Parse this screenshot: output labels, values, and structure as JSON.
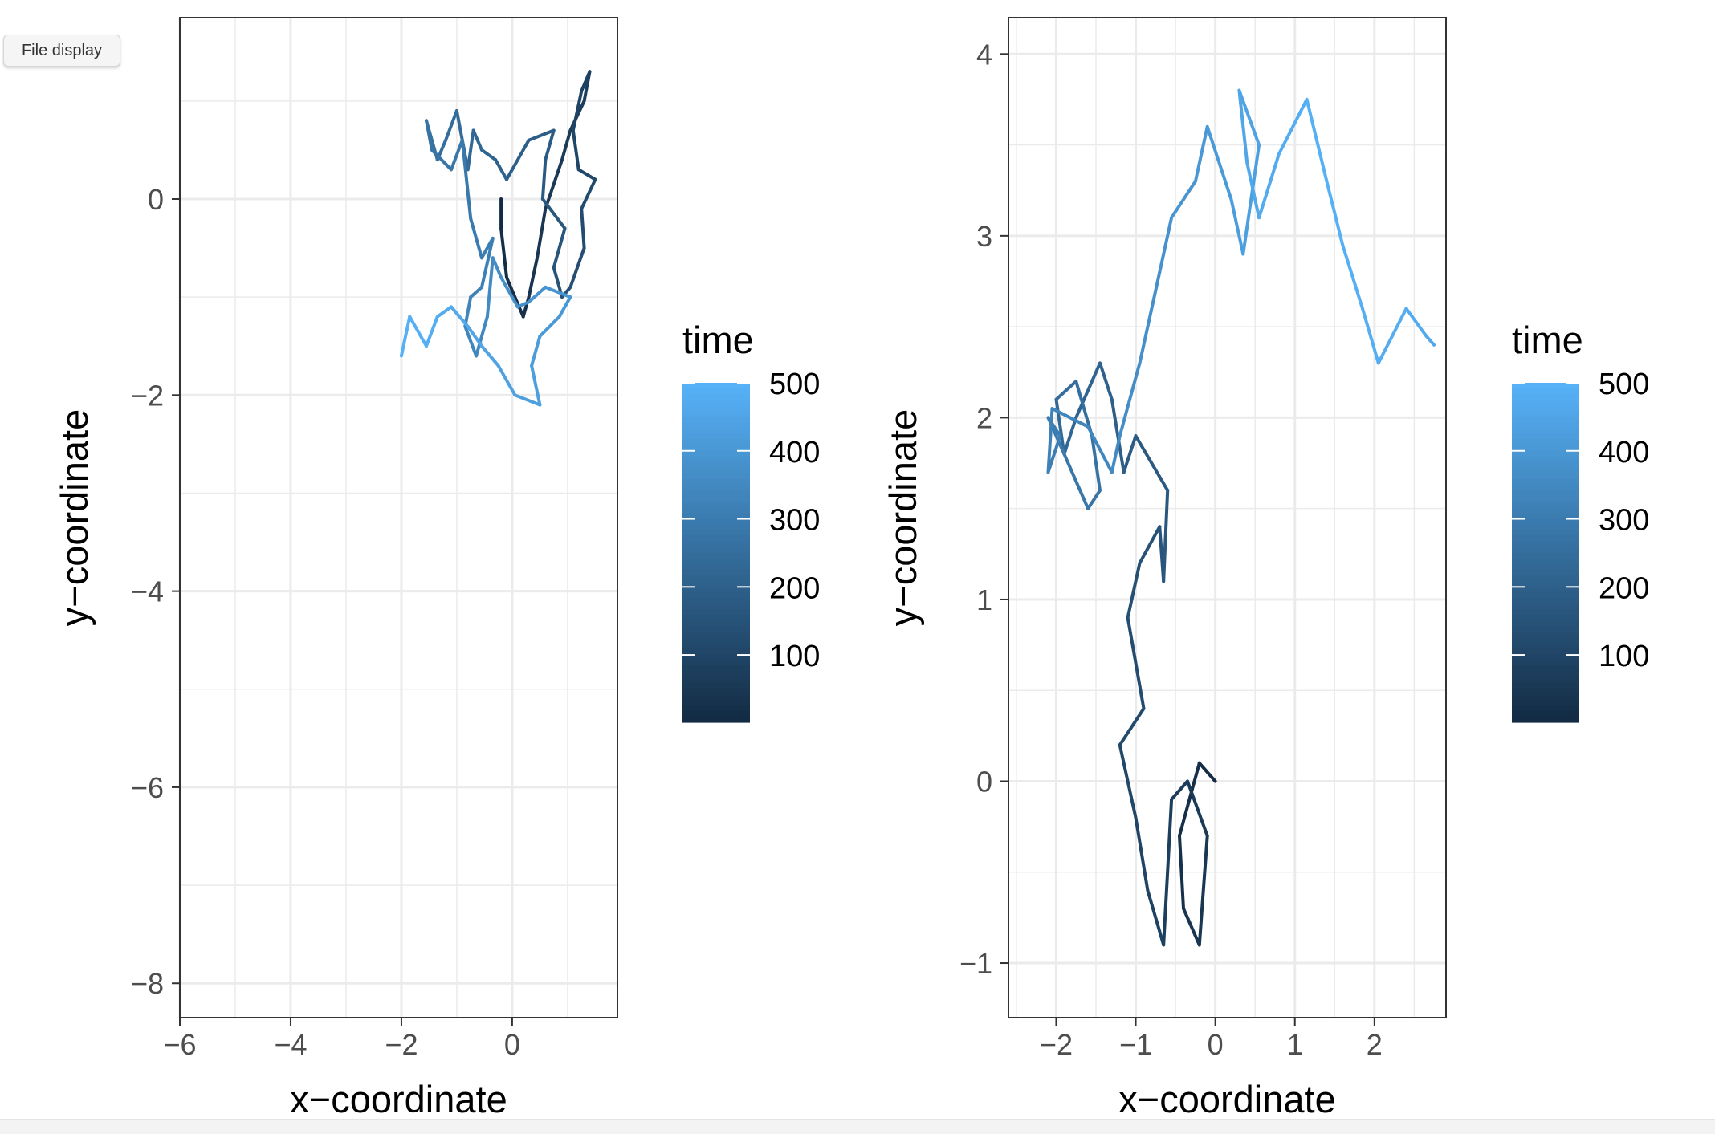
{
  "toolbar": {
    "file_display_label": "File display"
  },
  "chart_data": [
    {
      "type": "line",
      "xlabel": "x−coordinate",
      "ylabel": "y−coordinate",
      "xlim": [
        -6.0,
        1.9
      ],
      "ylim": [
        -8.35,
        1.85
      ],
      "x_ticks": [
        -6,
        -4,
        -2,
        0
      ],
      "x_tick_labels": [
        "−6",
        "−4",
        "−2",
        "0"
      ],
      "y_ticks": [
        -8,
        -6,
        -4,
        -2,
        0
      ],
      "y_tick_labels": [
        "−8",
        "−6",
        "−4",
        "−2",
        "0"
      ],
      "grid": true,
      "color_scale": {
        "name": "time",
        "low": "#132B43",
        "high": "#56B1F7",
        "domain": [
          1,
          500
        ]
      },
      "legend": {
        "title": "time",
        "labels": [
          "500",
          "400",
          "300",
          "200",
          "100"
        ],
        "breaks": [
          500,
          400,
          300,
          200,
          100
        ],
        "placement": "right"
      },
      "series": [
        {
          "x": [
            -0.2,
            -0.2,
            -0.1,
            0.2,
            0.3,
            0.45,
            0.6,
            0.9,
            1.05,
            1.3,
            1.4,
            1.25,
            1.1,
            1.2,
            1.5,
            1.25,
            1.3,
            1.05,
            0.9,
            0.75,
            0.95,
            0.55,
            0.6,
            0.75,
            0.3,
            -0.1,
            -0.3,
            -0.55,
            -0.7,
            -0.8,
            -1.0,
            -1.2,
            -1.35,
            -1.55,
            -1.45,
            -1.1,
            -0.9,
            -0.75,
            -0.55,
            -0.35,
            -0.55,
            -0.75,
            -0.85,
            -0.65,
            -0.45,
            -0.35,
            -0.2,
            0.1,
            0.3,
            0.6,
            1.05,
            0.85,
            0.5,
            0.35,
            0.5,
            0.05,
            -0.25,
            -0.55,
            -0.8,
            -1.1,
            -1.35,
            -1.55,
            -1.85,
            -2.0
          ],
          "y": [
            0.0,
            -0.3,
            -0.8,
            -1.2,
            -1.0,
            -0.6,
            -0.1,
            0.4,
            0.7,
            1.0,
            1.3,
            1.1,
            0.7,
            0.3,
            0.2,
            -0.1,
            -0.5,
            -0.9,
            -1.0,
            -0.7,
            -0.3,
            0.0,
            0.4,
            0.7,
            0.6,
            0.2,
            0.4,
            0.5,
            0.7,
            0.3,
            0.9,
            0.6,
            0.4,
            0.8,
            0.5,
            0.3,
            0.6,
            -0.2,
            -0.6,
            -0.4,
            -0.9,
            -1.0,
            -1.3,
            -1.6,
            -1.2,
            -0.6,
            -0.8,
            -1.1,
            -1.05,
            -0.9,
            -1.0,
            -1.2,
            -1.4,
            -1.7,
            -2.1,
            -2.0,
            -1.7,
            -1.5,
            -1.3,
            -1.1,
            -1.2,
            -1.5,
            -1.2,
            -1.6
          ],
          "t": [
            1,
            8,
            16,
            24,
            32,
            40,
            48,
            56,
            64,
            72,
            80,
            88,
            96,
            104,
            112,
            120,
            128,
            136,
            144,
            152,
            160,
            168,
            176,
            184,
            192,
            200,
            208,
            216,
            224,
            232,
            240,
            248,
            256,
            264,
            272,
            280,
            288,
            296,
            304,
            312,
            320,
            328,
            336,
            344,
            352,
            360,
            368,
            376,
            384,
            392,
            400,
            408,
            416,
            424,
            432,
            440,
            448,
            456,
            464,
            472,
            480,
            488,
            496,
            500
          ]
        }
      ]
    },
    {
      "type": "line",
      "xlabel": "x−coordinate",
      "ylabel": "y−coordinate",
      "xlim": [
        -2.6,
        2.9
      ],
      "ylim": [
        -1.3,
        4.2
      ],
      "x_ticks": [
        -2,
        -1,
        0,
        1,
        2
      ],
      "x_tick_labels": [
        "−2",
        "−1",
        "0",
        "1",
        "2"
      ],
      "y_ticks": [
        -1,
        0,
        1,
        2,
        3,
        4
      ],
      "y_tick_labels": [
        "−1",
        "0",
        "1",
        "2",
        "3",
        "4"
      ],
      "grid": true,
      "color_scale": {
        "name": "time",
        "low": "#132B43",
        "high": "#56B1F7",
        "domain": [
          1,
          500
        ]
      },
      "legend": {
        "title": "time",
        "labels": [
          "500",
          "400",
          "300",
          "200",
          "100"
        ],
        "breaks": [
          500,
          400,
          300,
          200,
          100
        ],
        "placement": "right"
      },
      "series": [
        {
          "x": [
            0.0,
            -0.2,
            -0.45,
            -0.4,
            -0.2,
            -0.1,
            -0.35,
            -0.55,
            -0.65,
            -0.85,
            -1.0,
            -1.2,
            -0.9,
            -1.1,
            -0.95,
            -0.7,
            -0.65,
            -0.6,
            -1.0,
            -1.15,
            -1.3,
            -1.45,
            -1.75,
            -1.9,
            -2.0,
            -1.75,
            -1.55,
            -1.45,
            -1.6,
            -1.9,
            -2.1,
            -1.95,
            -2.1,
            -2.05,
            -1.6,
            -1.3,
            -1.2,
            -0.95,
            -0.7,
            -0.55,
            -0.25,
            -0.1,
            0.2,
            0.35,
            0.55,
            0.3,
            0.4,
            0.55,
            0.8,
            1.15,
            1.4,
            1.6,
            1.85,
            2.05,
            2.4,
            2.65,
            2.75
          ],
          "y": [
            0.0,
            0.1,
            -0.3,
            -0.7,
            -0.9,
            -0.3,
            0.0,
            -0.1,
            -0.9,
            -0.6,
            -0.2,
            0.2,
            0.4,
            0.9,
            1.2,
            1.4,
            1.1,
            1.6,
            1.9,
            1.7,
            2.1,
            2.3,
            2.0,
            1.8,
            2.1,
            2.2,
            1.9,
            1.6,
            1.5,
            1.8,
            2.0,
            1.9,
            1.7,
            2.05,
            1.95,
            1.7,
            1.9,
            2.3,
            2.8,
            3.1,
            3.3,
            3.6,
            3.2,
            2.9,
            3.5,
            3.8,
            3.4,
            3.1,
            3.45,
            3.75,
            3.3,
            2.95,
            2.6,
            2.3,
            2.6,
            2.45,
            2.4
          ],
          "t": [
            1,
            10,
            20,
            30,
            40,
            50,
            60,
            70,
            80,
            90,
            100,
            110,
            120,
            130,
            140,
            150,
            160,
            170,
            180,
            190,
            200,
            210,
            220,
            230,
            240,
            250,
            260,
            270,
            280,
            290,
            300,
            310,
            320,
            330,
            340,
            350,
            360,
            370,
            380,
            390,
            400,
            410,
            420,
            430,
            440,
            450,
            460,
            470,
            480,
            490,
            500,
            495,
            490,
            485,
            480,
            475,
            470
          ]
        }
      ]
    }
  ]
}
